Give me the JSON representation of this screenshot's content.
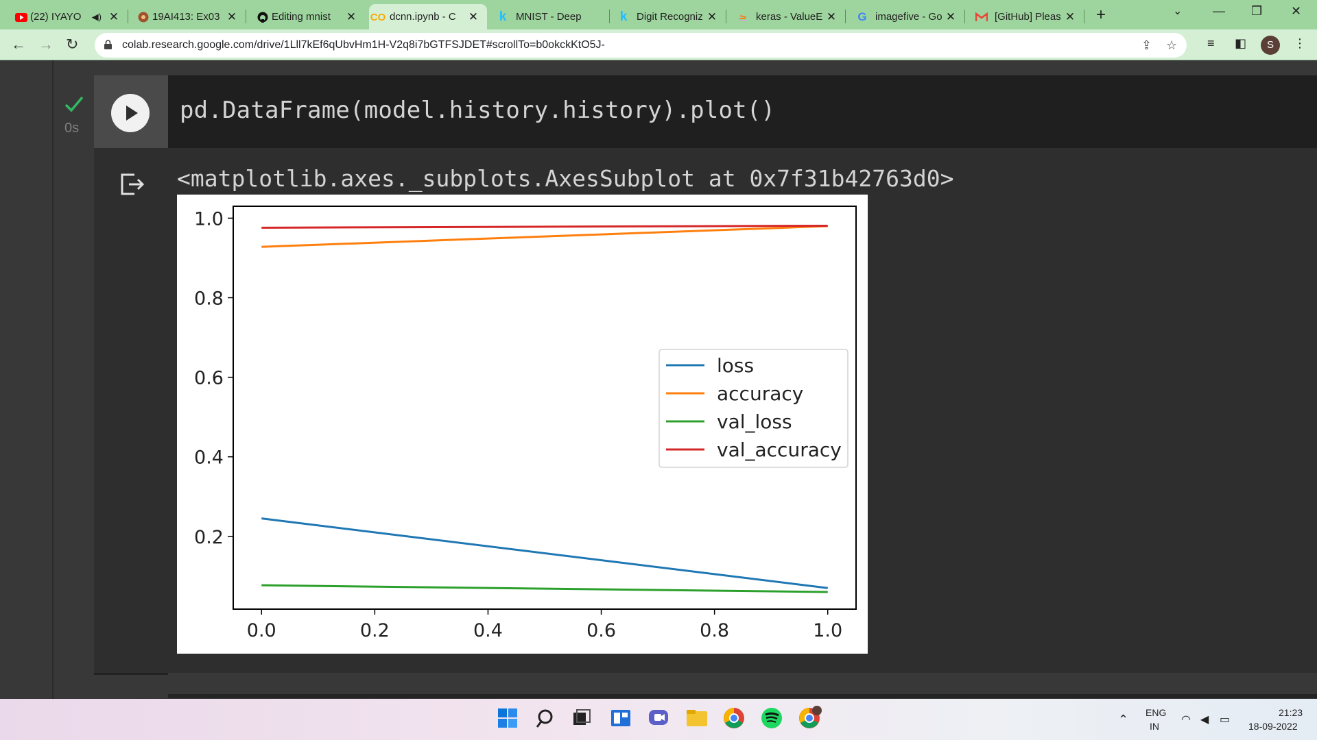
{
  "browser": {
    "tabs": [
      {
        "title": "(22) IYAYO",
        "icon": "youtube-icon",
        "has_audio": true
      },
      {
        "title": "19AI413: Ex03",
        "icon": "github-icon"
      },
      {
        "title": "Editing mnist",
        "icon": "github-icon"
      },
      {
        "title": "dcnn.ipynb - C",
        "icon": "colab-icon",
        "active": true
      },
      {
        "title": "MNIST - Deep",
        "icon": "kaggle-icon"
      },
      {
        "title": "Digit Recogniz",
        "icon": "kaggle-icon"
      },
      {
        "title": "keras - ValueE",
        "icon": "stackoverflow-icon"
      },
      {
        "title": "imagefive - Go",
        "icon": "google-icon"
      },
      {
        "title": "[GitHub] Pleas",
        "icon": "gmail-icon"
      }
    ],
    "url": "colab.research.google.com/drive/1Lll7kEf6qUbvHm1H-V2q8i7bGTFSJDET#scrollTo=b0okckKtO5J-",
    "profile_initial": "S"
  },
  "cell": {
    "code": "pd.DataFrame(model.history.history).plot()",
    "exec_time": "0s",
    "output_text": "<matplotlib.axes._subplots.AxesSubplot at 0x7f31b42763d0>"
  },
  "chart_data": {
    "type": "line",
    "x": [
      0.0,
      1.0
    ],
    "series": [
      {
        "name": "loss",
        "values": [
          0.245,
          0.07
        ],
        "color": "#1f77b4"
      },
      {
        "name": "accuracy",
        "values": [
          0.928,
          0.98
        ],
        "color": "#ff7f0e"
      },
      {
        "name": "val_loss",
        "values": [
          0.077,
          0.06
        ],
        "color": "#2ca02c"
      },
      {
        "name": "val_accuracy",
        "values": [
          0.976,
          0.981
        ],
        "color": "#d62728"
      }
    ],
    "xticks": [
      "0.0",
      "0.2",
      "0.4",
      "0.6",
      "0.8",
      "1.0"
    ],
    "yticks": [
      "0.2",
      "0.4",
      "0.6",
      "0.8",
      "1.0"
    ],
    "xlim": [
      -0.05,
      1.05
    ],
    "ylim": [
      0.017,
      1.03
    ],
    "legend_position": "center-right",
    "grid": false
  },
  "taskbar": {
    "lang_line1": "ENG",
    "lang_line2": "IN",
    "time": "21:23",
    "date": "18-09-2022"
  }
}
